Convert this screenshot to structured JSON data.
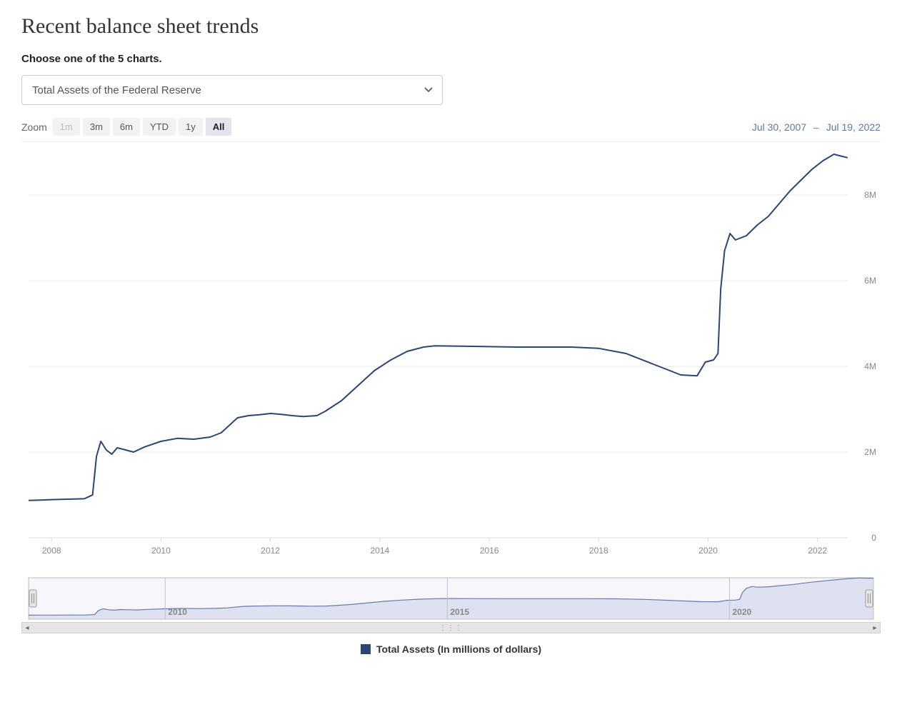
{
  "page_title": "Recent balance sheet trends",
  "instruction": "Choose one of the 5 charts.",
  "dropdown": {
    "selected": "Total Assets of the Federal Reserve"
  },
  "zoom": {
    "label": "Zoom",
    "options": [
      {
        "label": "1m",
        "state": "disabled"
      },
      {
        "label": "3m",
        "state": "normal"
      },
      {
        "label": "6m",
        "state": "normal"
      },
      {
        "label": "YTD",
        "state": "normal"
      },
      {
        "label": "1y",
        "state": "normal"
      },
      {
        "label": "All",
        "state": "active"
      }
    ]
  },
  "date_range": {
    "start": "Jul 30, 2007",
    "end": "Jul 19, 2022",
    "separator": "–"
  },
  "legend": {
    "label": "Total Assets (In millions of dollars)",
    "swatch_color": "#2a4672"
  },
  "chart": {
    "type": "line",
    "line_color": "#2a4672",
    "line_width": 2,
    "background_color": "#ffffff",
    "grid_color": "#e9e9e9",
    "axis_color": "#dcdcdc",
    "tick_label_color": "#888888",
    "tick_fontsize": 12,
    "x_domain": [
      2007.58,
      2022.55
    ],
    "y_domain": [
      0,
      9000000
    ],
    "y_ticks": [
      {
        "v": 0,
        "label": "0"
      },
      {
        "v": 2000000,
        "label": "2M"
      },
      {
        "v": 4000000,
        "label": "4M"
      },
      {
        "v": 6000000,
        "label": "6M"
      },
      {
        "v": 8000000,
        "label": "8M"
      }
    ],
    "x_ticks": [
      {
        "v": 2008,
        "label": "2008"
      },
      {
        "v": 2010,
        "label": "2010"
      },
      {
        "v": 2012,
        "label": "2012"
      },
      {
        "v": 2014,
        "label": "2014"
      },
      {
        "v": 2016,
        "label": "2016"
      },
      {
        "v": 2018,
        "label": "2018"
      },
      {
        "v": 2020,
        "label": "2020"
      },
      {
        "v": 2022,
        "label": "2022"
      }
    ],
    "data": [
      {
        "x": 2007.58,
        "y": 870000
      },
      {
        "x": 2007.8,
        "y": 880000
      },
      {
        "x": 2008.0,
        "y": 890000
      },
      {
        "x": 2008.3,
        "y": 900000
      },
      {
        "x": 2008.6,
        "y": 910000
      },
      {
        "x": 2008.75,
        "y": 1000000
      },
      {
        "x": 2008.82,
        "y": 1900000
      },
      {
        "x": 2008.9,
        "y": 2250000
      },
      {
        "x": 2009.0,
        "y": 2050000
      },
      {
        "x": 2009.1,
        "y": 1950000
      },
      {
        "x": 2009.2,
        "y": 2100000
      },
      {
        "x": 2009.35,
        "y": 2050000
      },
      {
        "x": 2009.5,
        "y": 2000000
      },
      {
        "x": 2009.7,
        "y": 2120000
      },
      {
        "x": 2010.0,
        "y": 2250000
      },
      {
        "x": 2010.3,
        "y": 2320000
      },
      {
        "x": 2010.6,
        "y": 2300000
      },
      {
        "x": 2010.9,
        "y": 2350000
      },
      {
        "x": 2011.1,
        "y": 2450000
      },
      {
        "x": 2011.4,
        "y": 2800000
      },
      {
        "x": 2011.6,
        "y": 2850000
      },
      {
        "x": 2011.8,
        "y": 2870000
      },
      {
        "x": 2012.0,
        "y": 2900000
      },
      {
        "x": 2012.2,
        "y": 2880000
      },
      {
        "x": 2012.4,
        "y": 2850000
      },
      {
        "x": 2012.6,
        "y": 2830000
      },
      {
        "x": 2012.85,
        "y": 2850000
      },
      {
        "x": 2013.0,
        "y": 2950000
      },
      {
        "x": 2013.3,
        "y": 3200000
      },
      {
        "x": 2013.6,
        "y": 3550000
      },
      {
        "x": 2013.9,
        "y": 3900000
      },
      {
        "x": 2014.2,
        "y": 4150000
      },
      {
        "x": 2014.5,
        "y": 4350000
      },
      {
        "x": 2014.8,
        "y": 4450000
      },
      {
        "x": 2015.0,
        "y": 4480000
      },
      {
        "x": 2015.5,
        "y": 4470000
      },
      {
        "x": 2016.0,
        "y": 4460000
      },
      {
        "x": 2016.5,
        "y": 4450000
      },
      {
        "x": 2017.0,
        "y": 4450000
      },
      {
        "x": 2017.5,
        "y": 4450000
      },
      {
        "x": 2018.0,
        "y": 4420000
      },
      {
        "x": 2018.5,
        "y": 4300000
      },
      {
        "x": 2019.0,
        "y": 4050000
      },
      {
        "x": 2019.5,
        "y": 3800000
      },
      {
        "x": 2019.8,
        "y": 3780000
      },
      {
        "x": 2019.95,
        "y": 4100000
      },
      {
        "x": 2020.1,
        "y": 4150000
      },
      {
        "x": 2020.18,
        "y": 4300000
      },
      {
        "x": 2020.23,
        "y": 5800000
      },
      {
        "x": 2020.3,
        "y": 6700000
      },
      {
        "x": 2020.4,
        "y": 7100000
      },
      {
        "x": 2020.5,
        "y": 6950000
      },
      {
        "x": 2020.7,
        "y": 7050000
      },
      {
        "x": 2020.9,
        "y": 7300000
      },
      {
        "x": 2021.1,
        "y": 7500000
      },
      {
        "x": 2021.3,
        "y": 7800000
      },
      {
        "x": 2021.5,
        "y": 8100000
      },
      {
        "x": 2021.7,
        "y": 8350000
      },
      {
        "x": 2021.9,
        "y": 8600000
      },
      {
        "x": 2022.1,
        "y": 8800000
      },
      {
        "x": 2022.3,
        "y": 8950000
      },
      {
        "x": 2022.45,
        "y": 8900000
      },
      {
        "x": 2022.55,
        "y": 8870000
      }
    ]
  },
  "navigator": {
    "fill_color": "#c9cfe8",
    "fill_opacity": 0.55,
    "line_color": "#6a7aa8",
    "border_color": "#b8b8b8",
    "handle_fill": "#e8e8e8",
    "handle_border": "#9a9a9a",
    "x_ticks": [
      {
        "v": 2010,
        "label": "2010"
      },
      {
        "v": 2015,
        "label": "2015"
      },
      {
        "v": 2020,
        "label": "2020"
      }
    ]
  }
}
